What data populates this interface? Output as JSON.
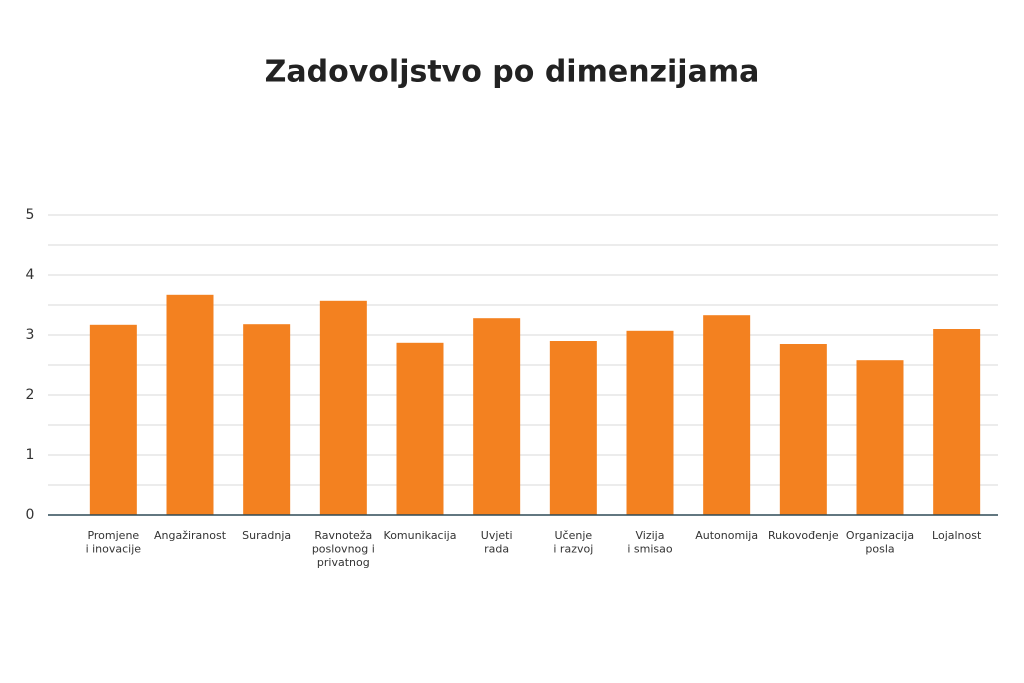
{
  "chart_data": {
    "type": "bar",
    "title": "Zadovoljstvo po dimenzijama",
    "categories": [
      [
        "Promjene",
        "i inovacije"
      ],
      [
        "Angažiranost"
      ],
      [
        "Suradnja"
      ],
      [
        "Ravnoteža",
        "poslovnog i",
        "privatnog"
      ],
      [
        "Komunikacija"
      ],
      [
        "Uvjeti",
        "rada"
      ],
      [
        "Učenje",
        "i razvoj"
      ],
      [
        "Vizija",
        "i smisao"
      ],
      [
        "Autonomija"
      ],
      [
        "Rukovođenje"
      ],
      [
        "Organizacija",
        "posla"
      ],
      [
        "Lojalnost"
      ]
    ],
    "values": [
      3.17,
      3.67,
      3.18,
      3.57,
      2.87,
      3.28,
      2.9,
      3.07,
      3.33,
      2.85,
      2.58,
      3.1
    ],
    "color": "#f38120",
    "ylim": [
      0,
      5
    ],
    "yticks": [
      0,
      1,
      2,
      3,
      4,
      5
    ],
    "minor_yticks": [
      0.5,
      1.5,
      2.5,
      3.5,
      4.5
    ],
    "grid": true
  }
}
